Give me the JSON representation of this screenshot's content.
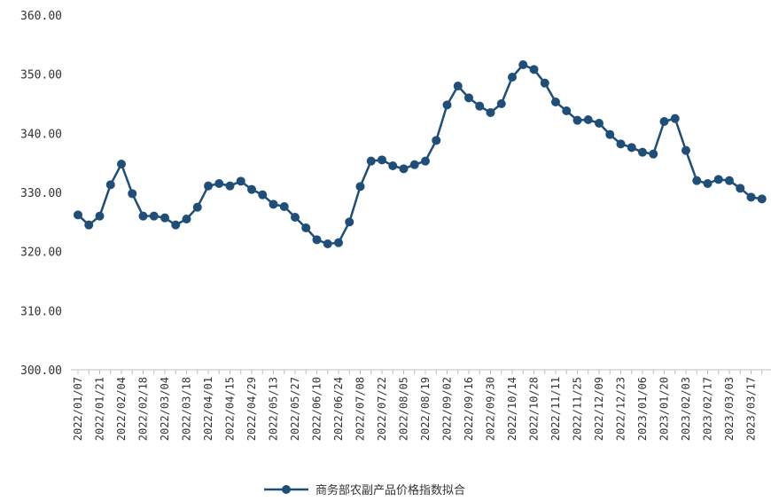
{
  "chart_data": {
    "type": "line",
    "title": "",
    "xlabel": "",
    "ylabel": "",
    "ylim": [
      300,
      360
    ],
    "y_ticks": [
      "300.00",
      "310.00",
      "320.00",
      "330.00",
      "340.00",
      "350.00",
      "360.00"
    ],
    "x_tick_labels": [
      "2022/01/07",
      "2022/01/21",
      "2022/02/04",
      "2022/02/18",
      "2022/03/04",
      "2022/03/18",
      "2022/04/01",
      "2022/04/15",
      "2022/04/29",
      "2022/05/13",
      "2022/05/27",
      "2022/06/10",
      "2022/06/24",
      "2022/07/08",
      "2022/07/22",
      "2022/08/05",
      "2022/08/19",
      "2022/09/02",
      "2022/09/16",
      "2022/09/30",
      "2022/10/14",
      "2022/10/28",
      "2022/11/11",
      "2022/11/25",
      "2022/12/09",
      "2022/12/23",
      "2023/01/06",
      "2023/01/20",
      "2023/02/03",
      "2023/02/17",
      "2023/03/03",
      "2023/03/17"
    ],
    "grid": false,
    "legend_position": "bottom",
    "color": "#1f4e79",
    "series": [
      {
        "name": "商务部农副产品价格指数拟合",
        "values": [
          326.2,
          324.5,
          326.0,
          331.3,
          334.8,
          329.8,
          326.0,
          326.0,
          325.7,
          324.5,
          325.5,
          327.5,
          331.1,
          331.5,
          331.1,
          331.9,
          330.5,
          329.6,
          328.0,
          327.6,
          325.8,
          324.0,
          322.0,
          321.3,
          321.5,
          325.0,
          331.0,
          335.3,
          335.5,
          334.5,
          334.0,
          334.7,
          335.3,
          338.8,
          344.8,
          348.0,
          346.0,
          344.6,
          343.5,
          345.0,
          349.5,
          351.6,
          350.8,
          348.5,
          345.3,
          343.8,
          342.2,
          342.3,
          341.7,
          339.8,
          338.2,
          337.6,
          336.8,
          336.5,
          342.0,
          342.5,
          337.1,
          332.0,
          331.5,
          332.2,
          332.0,
          330.7,
          329.2,
          328.9
        ]
      }
    ]
  }
}
